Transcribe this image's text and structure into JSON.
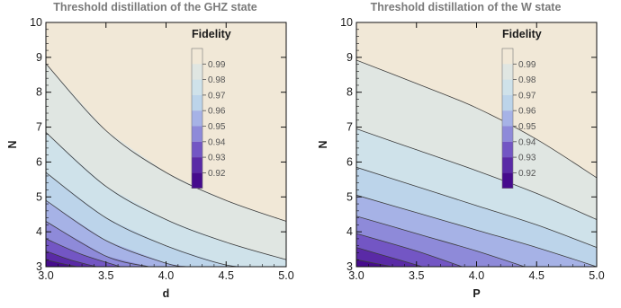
{
  "chart_data": [
    {
      "type": "contour",
      "title": "Threshold distillation of the GHZ state",
      "xlabel": "d",
      "ylabel": "N",
      "xlim": [
        3.0,
        5.0
      ],
      "ylim": [
        3,
        10
      ],
      "xticks": [
        "3.0",
        "3.5",
        "4.0",
        "4.5",
        "5.0"
      ],
      "yticks": [
        "3",
        "4",
        "5",
        "6",
        "7",
        "8",
        "9",
        "10"
      ],
      "legend": {
        "title": "Fidelity",
        "placement": "top-right",
        "labels": [
          "0.99",
          "0.98",
          "0.97",
          "0.96",
          "0.95",
          "0.94",
          "0.93",
          "0.92"
        ]
      },
      "contours": [
        {
          "level": 0.99,
          "x": [
            3.0,
            3.5,
            4.0,
            4.5,
            5.0
          ],
          "y": [
            8.82,
            6.9,
            5.7,
            4.9,
            4.3
          ]
        },
        {
          "level": 0.98,
          "x": [
            3.0,
            3.5,
            4.0,
            4.5,
            5.0
          ],
          "y": [
            6.85,
            5.3,
            4.35,
            3.7,
            3.2
          ]
        },
        {
          "level": 0.97,
          "x": [
            3.0,
            3.5,
            4.0,
            4.5,
            4.78
          ],
          "y": [
            5.7,
            4.4,
            3.6,
            3.05,
            3.0
          ]
        },
        {
          "level": 0.96,
          "x": [
            3.0,
            3.5,
            4.0,
            4.18
          ],
          "y": [
            4.9,
            3.75,
            3.1,
            3.0
          ]
        },
        {
          "level": 0.95,
          "x": [
            3.0,
            3.5,
            3.86
          ],
          "y": [
            4.3,
            3.3,
            3.0
          ]
        },
        {
          "level": 0.94,
          "x": [
            3.0,
            3.3,
            3.62
          ],
          "y": [
            3.8,
            3.35,
            3.0
          ]
        },
        {
          "level": 0.93,
          "x": [
            3.0,
            3.2,
            3.42
          ],
          "y": [
            3.45,
            3.2,
            3.0
          ]
        },
        {
          "level": 0.92,
          "x": [
            3.0,
            3.12,
            3.26
          ],
          "y": [
            3.2,
            3.1,
            3.0
          ]
        }
      ]
    },
    {
      "type": "contour",
      "title": "Threshold distillation of the W state",
      "xlabel": "P",
      "ylabel": "N",
      "xlim": [
        3.0,
        5.0
      ],
      "ylim": [
        3,
        10
      ],
      "xticks": [
        "3.0",
        "3.5",
        "4.0",
        "4.5",
        "5.0"
      ],
      "yticks": [
        "3",
        "4",
        "5",
        "6",
        "7",
        "8",
        "9",
        "10"
      ],
      "legend": {
        "title": "Fidelity",
        "placement": "top-right",
        "labels": [
          "0.99",
          "0.98",
          "0.97",
          "0.96",
          "0.95",
          "0.94",
          "0.93",
          "0.92"
        ]
      },
      "contours": [
        {
          "level": 0.99,
          "x": [
            3.0,
            3.5,
            4.0,
            4.5,
            5.0
          ],
          "y": [
            8.92,
            8.25,
            7.55,
            6.65,
            5.55
          ]
        },
        {
          "level": 0.98,
          "x": [
            3.0,
            3.5,
            4.0,
            4.5,
            5.0
          ],
          "y": [
            6.95,
            6.35,
            5.75,
            5.1,
            4.35
          ]
        },
        {
          "level": 0.97,
          "x": [
            3.0,
            3.5,
            4.0,
            4.5,
            5.0
          ],
          "y": [
            5.85,
            5.3,
            4.75,
            4.2,
            3.55
          ]
        },
        {
          "level": 0.96,
          "x": [
            3.0,
            3.5,
            4.0,
            4.5,
            5.0
          ],
          "y": [
            5.05,
            4.55,
            4.05,
            3.55,
            3.0
          ]
        },
        {
          "level": 0.95,
          "x": [
            3.0,
            3.5,
            4.0,
            4.4
          ],
          "y": [
            4.45,
            3.95,
            3.45,
            3.0
          ]
        },
        {
          "level": 0.94,
          "x": [
            3.0,
            3.5,
            3.88
          ],
          "y": [
            3.95,
            3.45,
            3.0
          ]
        },
        {
          "level": 0.93,
          "x": [
            3.0,
            3.3,
            3.55
          ],
          "y": [
            3.55,
            3.25,
            3.0
          ]
        },
        {
          "level": 0.92,
          "x": [
            3.0,
            3.15,
            3.3
          ],
          "y": [
            3.2,
            3.1,
            3.0
          ]
        }
      ]
    }
  ],
  "colors": {
    "bands": [
      "#f1e8d7",
      "#e0e6e2",
      "#cfe2ea",
      "#bcd4ea",
      "#a6b2e6",
      "#8e8ad9",
      "#7356c4",
      "#5a2aa6",
      "#460b8d"
    ],
    "contour_line": "#3c3c3c",
    "frame": "#111111"
  }
}
